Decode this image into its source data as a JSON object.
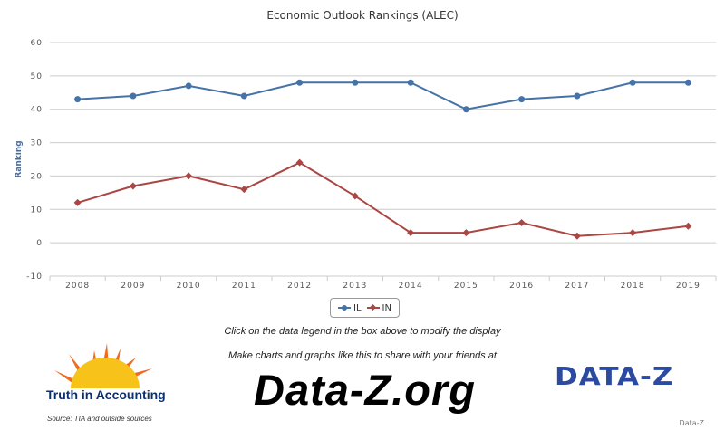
{
  "chart_data": {
    "type": "line",
    "title": "Economic Outlook Rankings (ALEC)",
    "ylabel": "Ranking",
    "xlabel": "",
    "ylim": [
      -10,
      60
    ],
    "yticks": [
      -10,
      0,
      10,
      20,
      30,
      40,
      50,
      60
    ],
    "grid": true,
    "legend_position": "bottom-center",
    "categories": [
      "2008",
      "2009",
      "2010",
      "2011",
      "2012",
      "2013",
      "2014",
      "2015",
      "2016",
      "2017",
      "2018",
      "2019"
    ],
    "series": [
      {
        "name": "IL",
        "color": "#4572a7",
        "marker": "circle",
        "values": [
          43,
          44,
          47,
          44,
          48,
          48,
          48,
          40,
          43,
          44,
          48,
          48
        ]
      },
      {
        "name": "IN",
        "color": "#aa4643",
        "marker": "diamond",
        "values": [
          12,
          17,
          20,
          16,
          24,
          14,
          3,
          3,
          6,
          2,
          3,
          5
        ]
      }
    ]
  },
  "footer": {
    "hint": "Click on the data legend in the box above to modify the display",
    "promo": "Make charts and graphs like this to share with your friends at",
    "site": "Data-Z.org",
    "tia_logo_text": "Truth in Accounting",
    "source": "Source: TIA and outside sources",
    "dz_logo_text": "DATA-Z",
    "credit": "Data-Z"
  },
  "colors": {
    "logo_blue": "#2b4aa0",
    "sun_yellow": "#f7c21a",
    "sun_orange": "#ef6b1f"
  }
}
